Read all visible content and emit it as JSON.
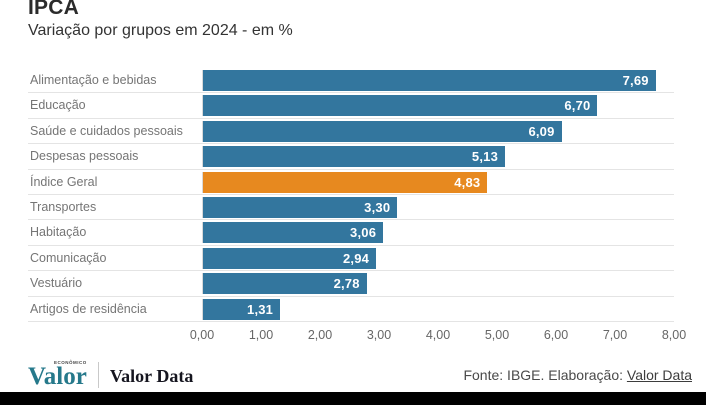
{
  "header": {
    "title": "IPCA",
    "subtitle": "Variação por grupos em 2024 - em %"
  },
  "chart_data": {
    "type": "bar",
    "orientation": "horizontal",
    "title": "IPCA",
    "subtitle": "Variação por grupos em 2024 - em %",
    "categories": [
      "Alimentação e bebidas",
      "Educação",
      "Saúde e cuidados pessoais",
      "Despesas pessoais",
      "Índice Geral",
      "Transportes",
      "Habitação",
      "Comunicação",
      "Vestuário",
      "Artigos de residência"
    ],
    "values": [
      7.69,
      6.7,
      6.09,
      5.13,
      4.83,
      3.3,
      3.06,
      2.94,
      2.78,
      1.31
    ],
    "value_labels": [
      "7,69",
      "6,70",
      "6,09",
      "5,13",
      "4,83",
      "3,30",
      "3,06",
      "2,94",
      "2,78",
      "1,31"
    ],
    "highlight_index": 4,
    "highlight_category": "Índice Geral",
    "colors": {
      "bar": "#33769e",
      "highlight": "#e7891f"
    },
    "xlim": [
      0,
      8
    ],
    "x_ticks": [
      "0,00",
      "1,00",
      "2,00",
      "3,00",
      "4,00",
      "5,00",
      "6,00",
      "7,00",
      "8,00"
    ],
    "grid": "horizontal row separators",
    "legend": "none"
  },
  "footer": {
    "brand": {
      "valor": "Valor",
      "valor_small": "ECONÔMICO",
      "valor_data": "Valor Data"
    },
    "source_prefix": "Fonte: IBGE. Elaboração: ",
    "source_link": "Valor Data"
  }
}
